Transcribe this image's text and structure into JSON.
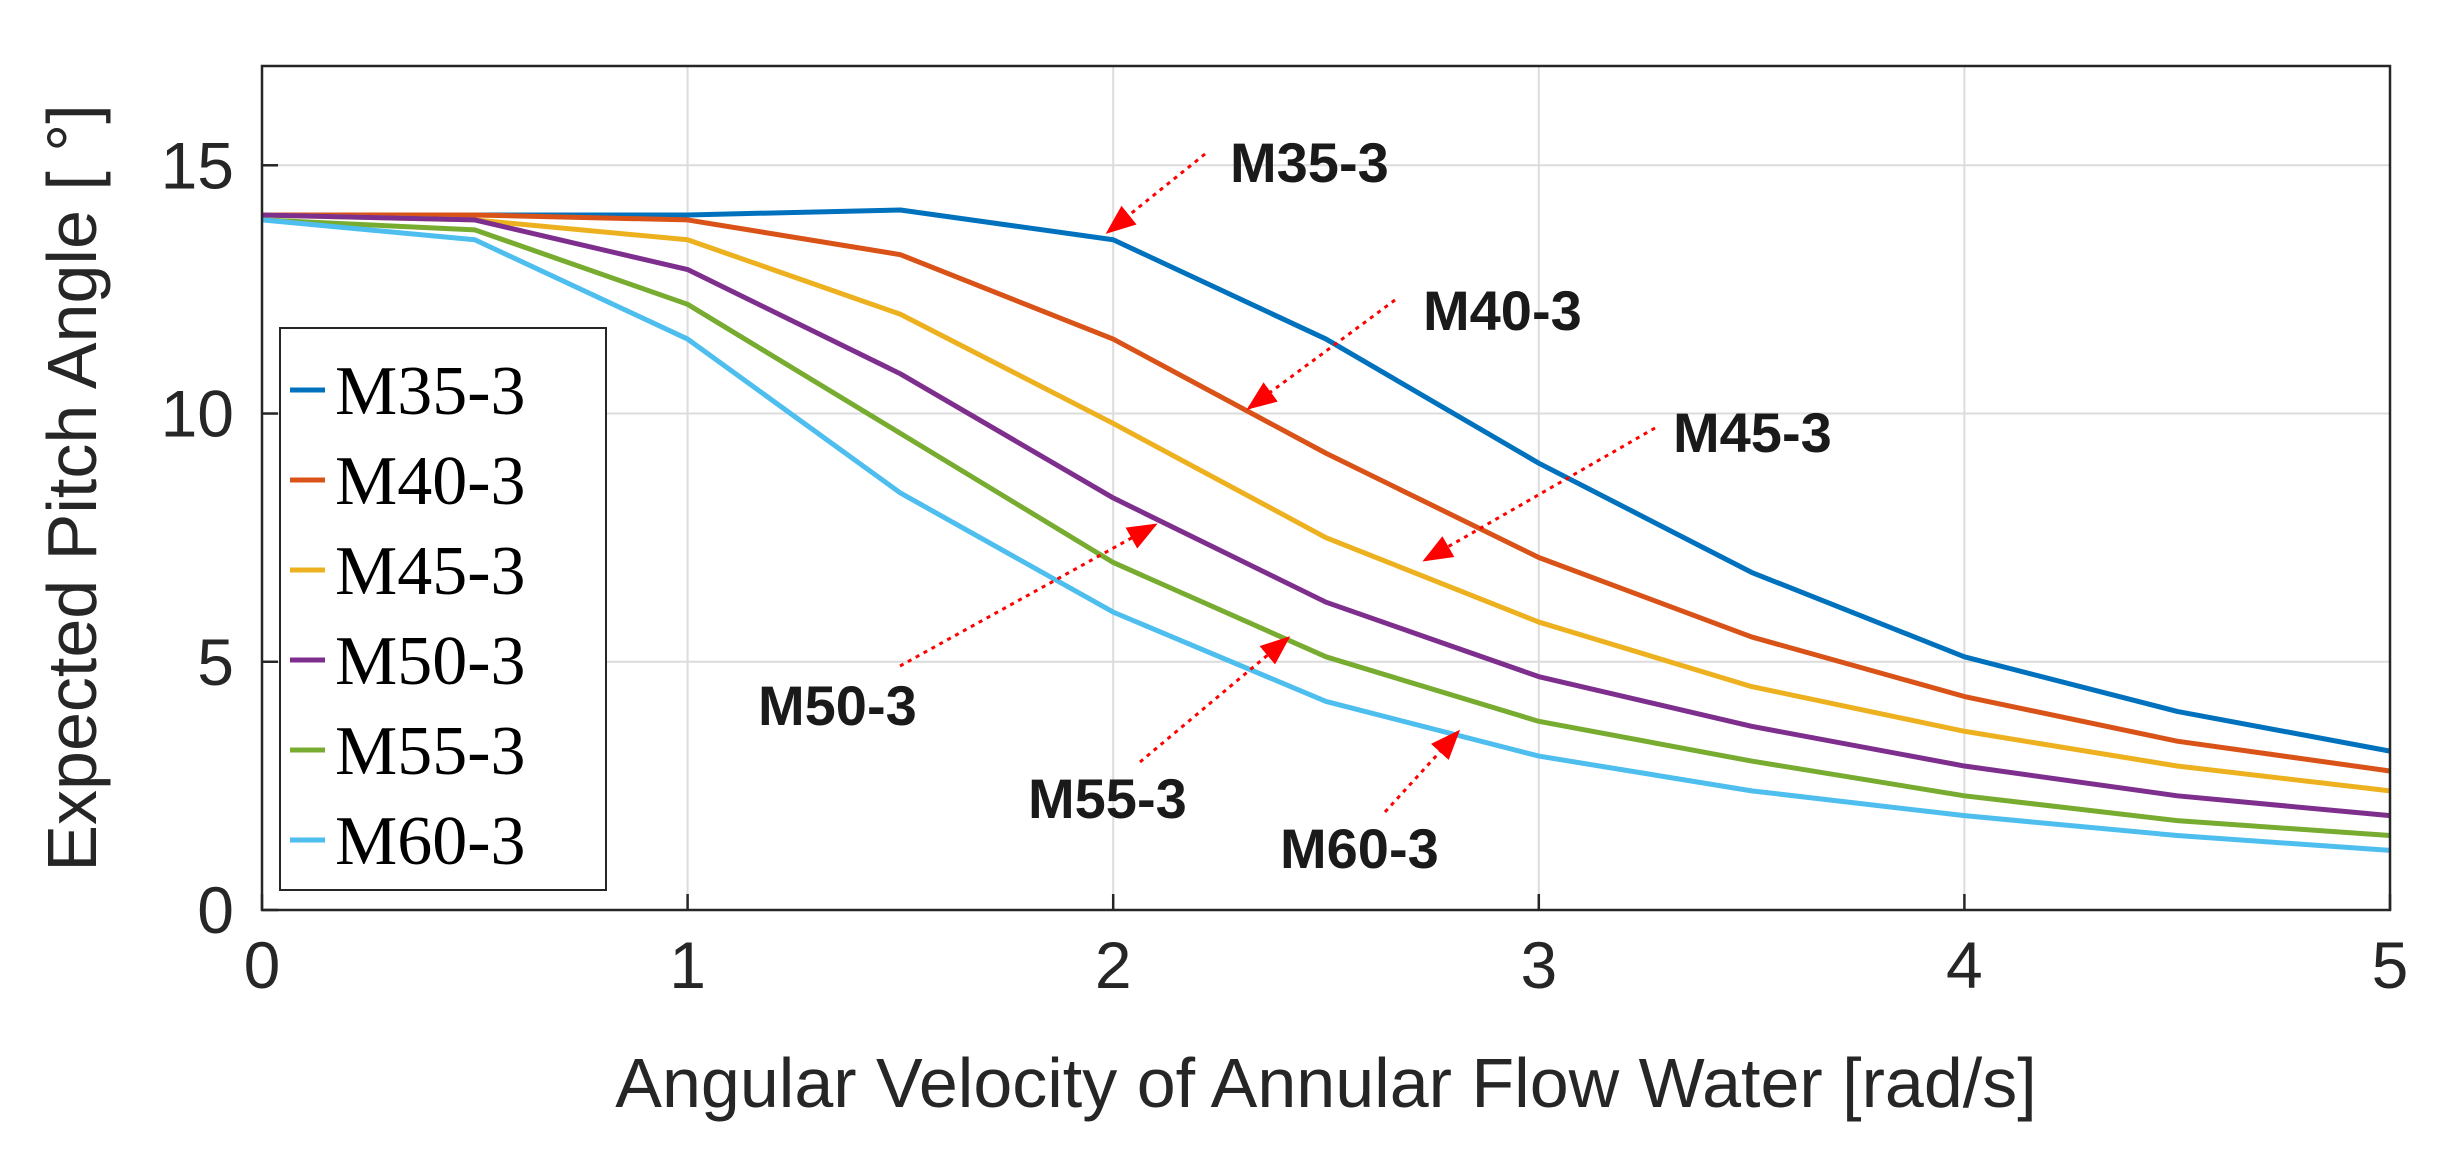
{
  "chart_data": {
    "type": "line",
    "title": "",
    "xlabel": "Angular Velocity of Annular Flow Water [rad/s]",
    "ylabel": "Expected Pitch Angle [ °]",
    "xlim": [
      0,
      5
    ],
    "ylim": [
      0,
      17
    ],
    "x_ticks": [
      "0",
      "1",
      "2",
      "3",
      "4",
      "5"
    ],
    "y_ticks": [
      "0",
      "5",
      "10",
      "15"
    ],
    "grid": true,
    "legend_position": "bottom-left",
    "x": [
      0,
      0.5,
      1,
      1.5,
      2,
      2.5,
      3,
      3.5,
      4,
      4.5,
      5
    ],
    "series": [
      {
        "name": "M35-3",
        "color": "#0072BD",
        "values": [
          14.0,
          14.0,
          14.0,
          14.1,
          13.5,
          11.5,
          9.0,
          6.8,
          5.1,
          4.0,
          3.2
        ]
      },
      {
        "name": "M40-3",
        "color": "#D95319",
        "values": [
          14.0,
          14.0,
          13.9,
          13.2,
          11.5,
          9.2,
          7.1,
          5.5,
          4.3,
          3.4,
          2.8
        ]
      },
      {
        "name": "M45-3",
        "color": "#EDB120",
        "values": [
          14.0,
          13.9,
          13.5,
          12.0,
          9.8,
          7.5,
          5.8,
          4.5,
          3.6,
          2.9,
          2.4
        ]
      },
      {
        "name": "M50-3",
        "color": "#7E2F8E",
        "values": [
          14.0,
          13.9,
          12.9,
          10.8,
          8.3,
          6.2,
          4.7,
          3.7,
          2.9,
          2.3,
          1.9
        ]
      },
      {
        "name": "M55-3",
        "color": "#77AC30",
        "values": [
          13.9,
          13.7,
          12.2,
          9.6,
          7.0,
          5.1,
          3.8,
          3.0,
          2.3,
          1.8,
          1.5
        ]
      },
      {
        "name": "M60-3",
        "color": "#4DBEEE",
        "values": [
          13.9,
          13.5,
          11.5,
          8.4,
          6.0,
          4.2,
          3.1,
          2.4,
          1.9,
          1.5,
          1.2
        ]
      }
    ],
    "annotations": [
      {
        "text": "M35-3",
        "point": [
          2.0,
          13.5
        ]
      },
      {
        "text": "M40-3",
        "point": [
          2.3,
          10.0
        ]
      },
      {
        "text": "M45-3",
        "point": [
          2.7,
          7.0
        ]
      },
      {
        "text": "M50-3",
        "point": [
          2.1,
          7.8
        ]
      },
      {
        "text": "M55-3",
        "point": [
          2.4,
          5.4
        ]
      },
      {
        "text": "M60-3",
        "point": [
          2.8,
          3.6
        ]
      }
    ],
    "annotation_color": "#FF0000"
  }
}
